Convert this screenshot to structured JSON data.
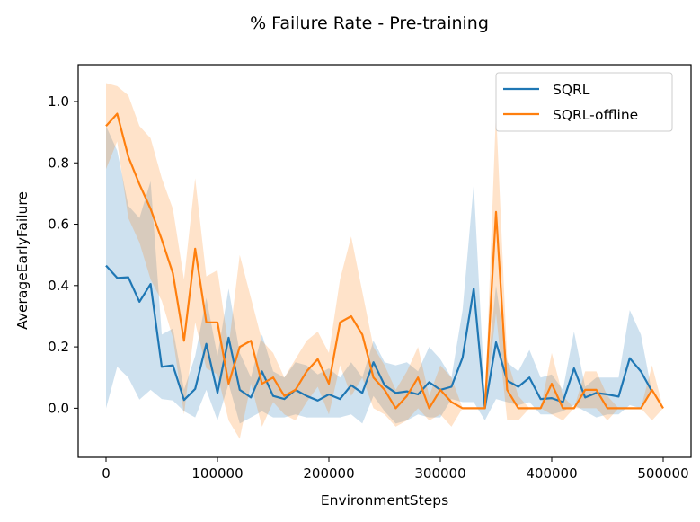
{
  "chart_data": {
    "type": "line",
    "title": "% Failure Rate - Pre-training",
    "xlabel": "EnvironmentSteps",
    "ylabel": "AverageEarlyFailure",
    "xlim": [
      -25000,
      525000
    ],
    "ylim": [
      -0.16,
      1.12
    ],
    "x_ticks": [
      0,
      100000,
      200000,
      300000,
      400000,
      500000
    ],
    "x_tick_labels": [
      "0",
      "100000",
      "200000",
      "300000",
      "400000",
      "500000"
    ],
    "y_ticks": [
      0.0,
      0.2,
      0.4,
      0.6,
      0.8,
      1.0
    ],
    "y_tick_labels": [
      "0.0",
      "0.2",
      "0.4",
      "0.6",
      "0.8",
      "1.0"
    ],
    "grid": false,
    "legend_position": "top-right",
    "series": [
      {
        "name": "SQRL",
        "color": "#1f77b4",
        "x": [
          0,
          10000,
          20000,
          30000,
          40000,
          50000,
          60000,
          70000,
          80000,
          90000,
          100000,
          110000,
          120000,
          130000,
          140000,
          150000,
          160000,
          170000,
          180000,
          190000,
          200000,
          210000,
          220000,
          230000,
          240000,
          250000,
          260000,
          270000,
          280000,
          290000,
          300000,
          310000,
          320000,
          330000,
          340000,
          350000,
          360000,
          370000,
          380000,
          390000,
          400000,
          410000,
          420000,
          430000,
          440000,
          450000,
          460000,
          470000,
          480000,
          490000
        ],
        "y": [
          0.465,
          0.425,
          0.427,
          0.347,
          0.405,
          0.135,
          0.14,
          0.027,
          0.063,
          0.21,
          0.05,
          0.23,
          0.06,
          0.035,
          0.12,
          0.04,
          0.03,
          0.06,
          0.04,
          0.025,
          0.045,
          0.03,
          0.075,
          0.05,
          0.15,
          0.075,
          0.05,
          0.055,
          0.045,
          0.085,
          0.06,
          0.07,
          0.165,
          0.39,
          0.0,
          0.215,
          0.09,
          0.07,
          0.1,
          0.03,
          0.033,
          0.02,
          0.13,
          0.035,
          0.05,
          0.045,
          0.038,
          0.163,
          0.12,
          0.055
        ],
        "y_upper": [
          0.92,
          0.84,
          0.66,
          0.62,
          0.74,
          0.24,
          0.26,
          0.06,
          0.17,
          0.36,
          0.17,
          0.39,
          0.18,
          0.1,
          0.24,
          0.12,
          0.1,
          0.15,
          0.14,
          0.11,
          0.13,
          0.1,
          0.15,
          0.1,
          0.22,
          0.15,
          0.14,
          0.15,
          0.12,
          0.2,
          0.16,
          0.1,
          0.32,
          0.73,
          0.04,
          0.4,
          0.15,
          0.12,
          0.19,
          0.1,
          0.11,
          0.06,
          0.25,
          0.07,
          0.1,
          0.1,
          0.1,
          0.32,
          0.24,
          0.05
        ],
        "y_lower": [
          0.0,
          0.135,
          0.1,
          0.028,
          0.06,
          0.03,
          0.025,
          -0.01,
          -0.03,
          0.06,
          -0.04,
          0.08,
          -0.05,
          -0.03,
          -0.01,
          -0.03,
          -0.03,
          -0.02,
          -0.03,
          -0.03,
          -0.03,
          -0.03,
          -0.02,
          -0.05,
          0.04,
          -0.01,
          -0.05,
          -0.04,
          -0.02,
          -0.03,
          -0.03,
          0.03,
          0.02,
          0.02,
          -0.04,
          0.03,
          0.02,
          0.01,
          0.02,
          -0.02,
          -0.02,
          -0.01,
          0.01,
          -0.01,
          -0.03,
          -0.02,
          -0.02,
          0.01,
          0.0,
          0.06
        ]
      },
      {
        "name": "SQRL-offline",
        "color": "#ff7f0e",
        "x": [
          0,
          10000,
          20000,
          30000,
          40000,
          50000,
          60000,
          70000,
          80000,
          90000,
          100000,
          110000,
          120000,
          130000,
          140000,
          150000,
          160000,
          170000,
          180000,
          190000,
          200000,
          210000,
          220000,
          230000,
          240000,
          250000,
          260000,
          270000,
          280000,
          290000,
          300000,
          310000,
          320000,
          330000,
          340000,
          350000,
          360000,
          370000,
          380000,
          390000,
          400000,
          410000,
          420000,
          430000,
          440000,
          450000,
          460000,
          470000,
          480000,
          490000,
          500000
        ],
        "y": [
          0.92,
          0.96,
          0.82,
          0.73,
          0.65,
          0.55,
          0.44,
          0.22,
          0.52,
          0.28,
          0.28,
          0.08,
          0.2,
          0.22,
          0.08,
          0.1,
          0.04,
          0.06,
          0.12,
          0.16,
          0.08,
          0.28,
          0.3,
          0.24,
          0.1,
          0.06,
          0.0,
          0.04,
          0.1,
          0.0,
          0.06,
          0.02,
          0.0,
          0.0,
          0.0,
          0.64,
          0.06,
          0.0,
          0.0,
          0.0,
          0.08,
          0.0,
          0.0,
          0.06,
          0.06,
          0.0,
          0.0,
          0.0,
          0.0,
          0.06,
          0.0
        ],
        "y_upper": [
          1.06,
          1.05,
          1.02,
          0.92,
          0.88,
          0.75,
          0.65,
          0.42,
          0.75,
          0.43,
          0.45,
          0.2,
          0.5,
          0.36,
          0.22,
          0.18,
          0.1,
          0.16,
          0.22,
          0.25,
          0.18,
          0.42,
          0.56,
          0.38,
          0.2,
          0.14,
          0.06,
          0.12,
          0.2,
          0.04,
          0.14,
          0.1,
          0.0,
          0.0,
          0.0,
          0.97,
          0.16,
          0.04,
          0.0,
          0.0,
          0.18,
          0.04,
          0.0,
          0.12,
          0.12,
          0.04,
          0.0,
          0.0,
          0.0,
          0.14,
          0.0
        ],
        "y_lower": [
          0.78,
          0.87,
          0.62,
          0.54,
          0.42,
          0.35,
          0.23,
          -0.02,
          0.28,
          0.13,
          0.11,
          -0.04,
          -0.1,
          0.08,
          -0.06,
          0.02,
          -0.02,
          -0.04,
          0.02,
          0.07,
          -0.02,
          0.14,
          0.04,
          0.1,
          0.0,
          -0.02,
          -0.06,
          -0.04,
          0.0,
          -0.04,
          -0.02,
          -0.06,
          0.0,
          0.0,
          0.0,
          0.31,
          -0.04,
          -0.04,
          0.0,
          0.0,
          -0.02,
          -0.04,
          0.0,
          0.0,
          0.0,
          -0.04,
          0.0,
          0.0,
          0.0,
          -0.04,
          0.0
        ]
      }
    ]
  }
}
